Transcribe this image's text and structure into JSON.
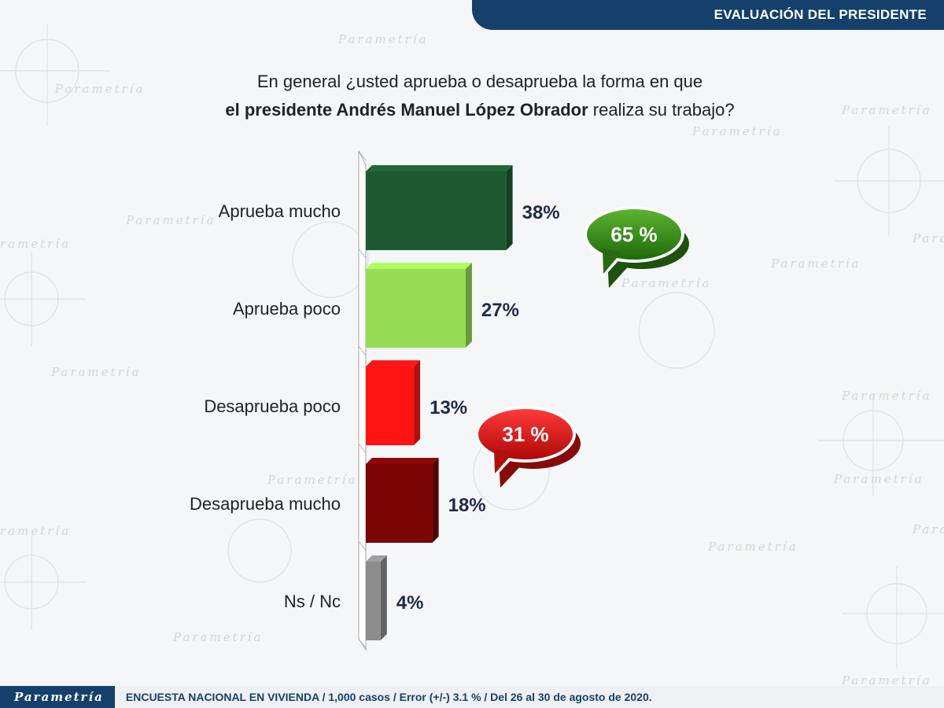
{
  "header": {
    "title": "EVALUACIÓN DEL PRESIDENTE"
  },
  "question": {
    "line1": "En general ¿usted aprueba o desaprueba la forma en que",
    "line2_bold": "el presidente Andrés Manuel López Obrador",
    "line2_rest": " realiza su trabajo?"
  },
  "chart_data": {
    "type": "bar",
    "orientation": "horizontal",
    "categories": [
      "Aprueba mucho",
      "Aprueba poco",
      "Desaprueba poco",
      "Desaprueba mucho",
      "Ns / Nc"
    ],
    "values": [
      38,
      27,
      13,
      18,
      4
    ],
    "value_labels": [
      "38%",
      "27%",
      "13%",
      "18%",
      "4%"
    ],
    "colors": [
      "#1d5a31",
      "#96dc55",
      "#ff1414",
      "#7a0606",
      "#8c8c8c"
    ],
    "callouts": [
      {
        "text": "65 %",
        "color": "#2e7d16",
        "groups": [
          "Aprueba mucho",
          "Aprueba poco"
        ]
      },
      {
        "text": "31 %",
        "color": "#d01010",
        "groups": [
          "Desaprueba poco",
          "Desaprueba mucho"
        ]
      }
    ]
  },
  "footer": {
    "brand": "Parametría",
    "note": "ENCUESTA NACIONAL EN VIVIENDA / 1,000 casos / Error (+/-) 3.1 % / Del 26 al 30 de agosto de 2020."
  }
}
